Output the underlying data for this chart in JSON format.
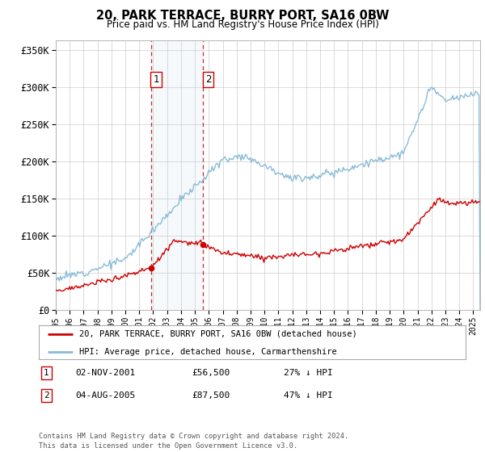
{
  "title": "20, PARK TERRACE, BURRY PORT, SA16 0BW",
  "subtitle": "Price paid vs. HM Land Registry's House Price Index (HPI)",
  "legend_line1": "20, PARK TERRACE, BURRY PORT, SA16 0BW (detached house)",
  "legend_line2": "HPI: Average price, detached house, Carmarthenshire",
  "annotation1_label": "1",
  "annotation1_date": "02-NOV-2001",
  "annotation1_price": "£56,500",
  "annotation1_hpi": "27% ↓ HPI",
  "annotation2_label": "2",
  "annotation2_date": "04-AUG-2005",
  "annotation2_price": "£87,500",
  "annotation2_hpi": "47% ↓ HPI",
  "footer": "Contains HM Land Registry data © Crown copyright and database right 2024.\nThis data is licensed under the Open Government Licence v3.0.",
  "sale1_x": 2001.84,
  "sale1_y": 56500,
  "sale2_x": 2005.59,
  "sale2_y": 87500,
  "hpi_color": "#8abbd6",
  "price_color": "#cc0000",
  "xlim": [
    1995,
    2025.5
  ],
  "ylim": [
    0,
    362500
  ],
  "yticks": [
    0,
    50000,
    100000,
    150000,
    200000,
    250000,
    300000,
    350000
  ],
  "ytick_labels": [
    "£0",
    "£50K",
    "£100K",
    "£150K",
    "£200K",
    "£250K",
    "£300K",
    "£350K"
  ],
  "shade_x1": 2001.84,
  "shade_x2": 2005.59,
  "grid_color": "#cccccc",
  "background_color": "#ffffff"
}
